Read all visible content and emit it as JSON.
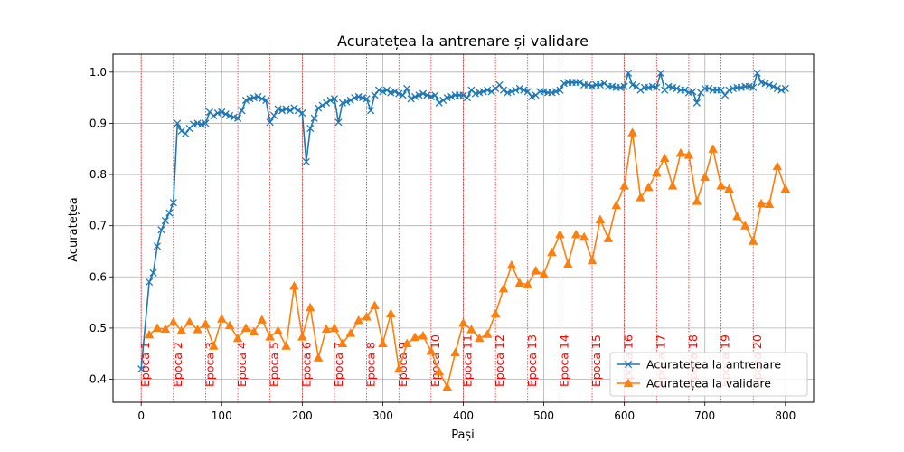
{
  "chart_data": {
    "type": "line",
    "title": "Acuratețea la antrenare și validare",
    "xlabel": "Pași",
    "ylabel": "Acuratețea",
    "xlim": [
      -35,
      835
    ],
    "ylim": [
      0.355,
      1.035
    ],
    "xticks": [
      0,
      100,
      200,
      300,
      400,
      500,
      600,
      700,
      800
    ],
    "yticks": [
      "0.4",
      "0.5",
      "0.6",
      "0.7",
      "0.8",
      "0.9",
      "1.0"
    ],
    "grid": true,
    "legend": "lower-right",
    "epoch_lines": [
      {
        "x": 0,
        "label": "Epoca 1"
      },
      {
        "x": 40,
        "label": "Epoca 2"
      },
      {
        "x": 80,
        "label": "Epoca 3"
      },
      {
        "x": 120,
        "label": "Epoca 4"
      },
      {
        "x": 160,
        "label": "Epoca 5"
      },
      {
        "x": 200,
        "label": "Epoca 6"
      },
      {
        "x": 240,
        "label": "Epoca 7"
      },
      {
        "x": 280,
        "label": "Epoca 8"
      },
      {
        "x": 320,
        "label": "Epoca 9"
      },
      {
        "x": 360,
        "label": "Epoca 10"
      },
      {
        "x": 400,
        "label": "Epoca 11"
      },
      {
        "x": 440,
        "label": "Epoca 12"
      },
      {
        "x": 480,
        "label": "Epoca 13"
      },
      {
        "x": 520,
        "label": "Epoca 14"
      },
      {
        "x": 560,
        "label": "Epoca 15"
      },
      {
        "x": 600,
        "label": "Epoca 16"
      },
      {
        "x": 640,
        "label": "Epoca 17"
      },
      {
        "x": 680,
        "label": "Epoca 18"
      },
      {
        "x": 720,
        "label": "Epoca 19"
      },
      {
        "x": 760,
        "label": "Epoca 20"
      }
    ],
    "series": [
      {
        "name": "Acuratețea la antrenare",
        "color": "#1f77b4",
        "marker": "x",
        "x": [
          0,
          10,
          15,
          20,
          25,
          30,
          35,
          40,
          45,
          50,
          55,
          60,
          65,
          70,
          75,
          80,
          85,
          90,
          95,
          100,
          105,
          110,
          115,
          120,
          125,
          130,
          135,
          140,
          145,
          150,
          155,
          160,
          165,
          170,
          175,
          180,
          185,
          190,
          195,
          200,
          205,
          210,
          215,
          220,
          225,
          230,
          235,
          240,
          245,
          250,
          255,
          260,
          265,
          270,
          275,
          280,
          285,
          290,
          295,
          300,
          305,
          310,
          315,
          320,
          325,
          330,
          335,
          340,
          345,
          350,
          355,
          360,
          365,
          370,
          375,
          380,
          385,
          390,
          395,
          400,
          405,
          410,
          415,
          420,
          425,
          430,
          435,
          440,
          445,
          450,
          455,
          460,
          465,
          470,
          475,
          480,
          485,
          490,
          495,
          500,
          505,
          510,
          515,
          520,
          525,
          530,
          535,
          540,
          545,
          550,
          555,
          560,
          565,
          570,
          575,
          580,
          585,
          590,
          595,
          600,
          605,
          610,
          615,
          620,
          625,
          630,
          635,
          640,
          645,
          650,
          655,
          660,
          665,
          670,
          675,
          680,
          685,
          690,
          695,
          700,
          705,
          710,
          715,
          720,
          725,
          730,
          735,
          740,
          745,
          750,
          755,
          760,
          765,
          770,
          775,
          780,
          785,
          790,
          795,
          800
        ],
        "y": [
          0.42,
          0.59,
          0.608,
          0.66,
          0.692,
          0.71,
          0.725,
          0.745,
          0.9,
          0.885,
          0.88,
          0.89,
          0.898,
          0.9,
          0.898,
          0.9,
          0.922,
          0.915,
          0.92,
          0.922,
          0.918,
          0.915,
          0.912,
          0.91,
          0.925,
          0.945,
          0.948,
          0.95,
          0.952,
          0.948,
          0.945,
          0.902,
          0.915,
          0.928,
          0.925,
          0.928,
          0.925,
          0.93,
          0.925,
          0.92,
          0.825,
          0.89,
          0.91,
          0.93,
          0.935,
          0.94,
          0.945,
          0.948,
          0.902,
          0.94,
          0.942,
          0.945,
          0.95,
          0.952,
          0.95,
          0.948,
          0.925,
          0.955,
          0.965,
          0.962,
          0.965,
          0.96,
          0.962,
          0.958,
          0.955,
          0.968,
          0.948,
          0.952,
          0.955,
          0.958,
          0.955,
          0.952,
          0.955,
          0.94,
          0.945,
          0.95,
          0.952,
          0.955,
          0.955,
          0.955,
          0.95,
          0.965,
          0.958,
          0.96,
          0.962,
          0.965,
          0.962,
          0.968,
          0.975,
          0.965,
          0.96,
          0.962,
          0.965,
          0.968,
          0.965,
          0.962,
          0.952,
          0.955,
          0.962,
          0.962,
          0.96,
          0.96,
          0.962,
          0.965,
          0.978,
          0.98,
          0.98,
          0.98,
          0.98,
          0.975,
          0.975,
          0.972,
          0.975,
          0.975,
          0.978,
          0.972,
          0.972,
          0.97,
          0.97,
          0.972,
          0.998,
          0.975,
          0.972,
          0.965,
          0.97,
          0.97,
          0.972,
          0.97,
          0.998,
          0.965,
          0.972,
          0.97,
          0.968,
          0.965,
          0.965,
          0.96,
          0.962,
          0.94,
          0.96,
          0.968,
          0.968,
          0.965,
          0.965,
          0.965,
          0.955,
          0.965,
          0.968,
          0.97,
          0.97,
          0.972,
          0.972,
          0.97,
          0.998,
          0.98,
          0.978,
          0.975,
          0.972,
          0.968,
          0.965,
          0.968
        ]
      },
      {
        "name": "Acuratețea la validare",
        "color": "#ff7f0e",
        "marker": "^",
        "x": [
          10,
          20,
          30,
          40,
          50,
          60,
          70,
          80,
          90,
          100,
          110,
          120,
          130,
          140,
          150,
          160,
          170,
          180,
          190,
          200,
          210,
          220,
          230,
          240,
          250,
          260,
          270,
          280,
          290,
          300,
          310,
          320,
          330,
          340,
          350,
          360,
          370,
          380,
          390,
          400,
          410,
          420,
          430,
          440,
          450,
          460,
          470,
          480,
          490,
          500,
          510,
          520,
          530,
          540,
          550,
          560,
          570,
          580,
          590,
          600,
          610,
          620,
          630,
          640,
          650,
          660,
          670,
          680,
          690,
          700,
          710,
          720,
          730,
          740,
          750,
          760,
          770,
          780,
          790,
          800
        ],
        "y": [
          0.487,
          0.5,
          0.498,
          0.512,
          0.495,
          0.512,
          0.497,
          0.508,
          0.465,
          0.518,
          0.505,
          0.48,
          0.5,
          0.493,
          0.516,
          0.483,
          0.495,
          0.465,
          0.582,
          0.483,
          0.54,
          0.442,
          0.498,
          0.5,
          0.47,
          0.49,
          0.515,
          0.522,
          0.544,
          0.47,
          0.528,
          0.42,
          0.47,
          0.482,
          0.485,
          0.455,
          0.415,
          0.385,
          0.452,
          0.51,
          0.497,
          0.48,
          0.488,
          0.528,
          0.577,
          0.623,
          0.588,
          0.585,
          0.612,
          0.605,
          0.648,
          0.683,
          0.625,
          0.683,
          0.678,
          0.632,
          0.712,
          0.675,
          0.74,
          0.778,
          0.882,
          0.755,
          0.775,
          0.803,
          0.832,
          0.778,
          0.842,
          0.838,
          0.748,
          0.795,
          0.85,
          0.778,
          0.772,
          0.718,
          0.7,
          0.67,
          0.743,
          0.742,
          0.816,
          0.772
        ]
      }
    ]
  }
}
